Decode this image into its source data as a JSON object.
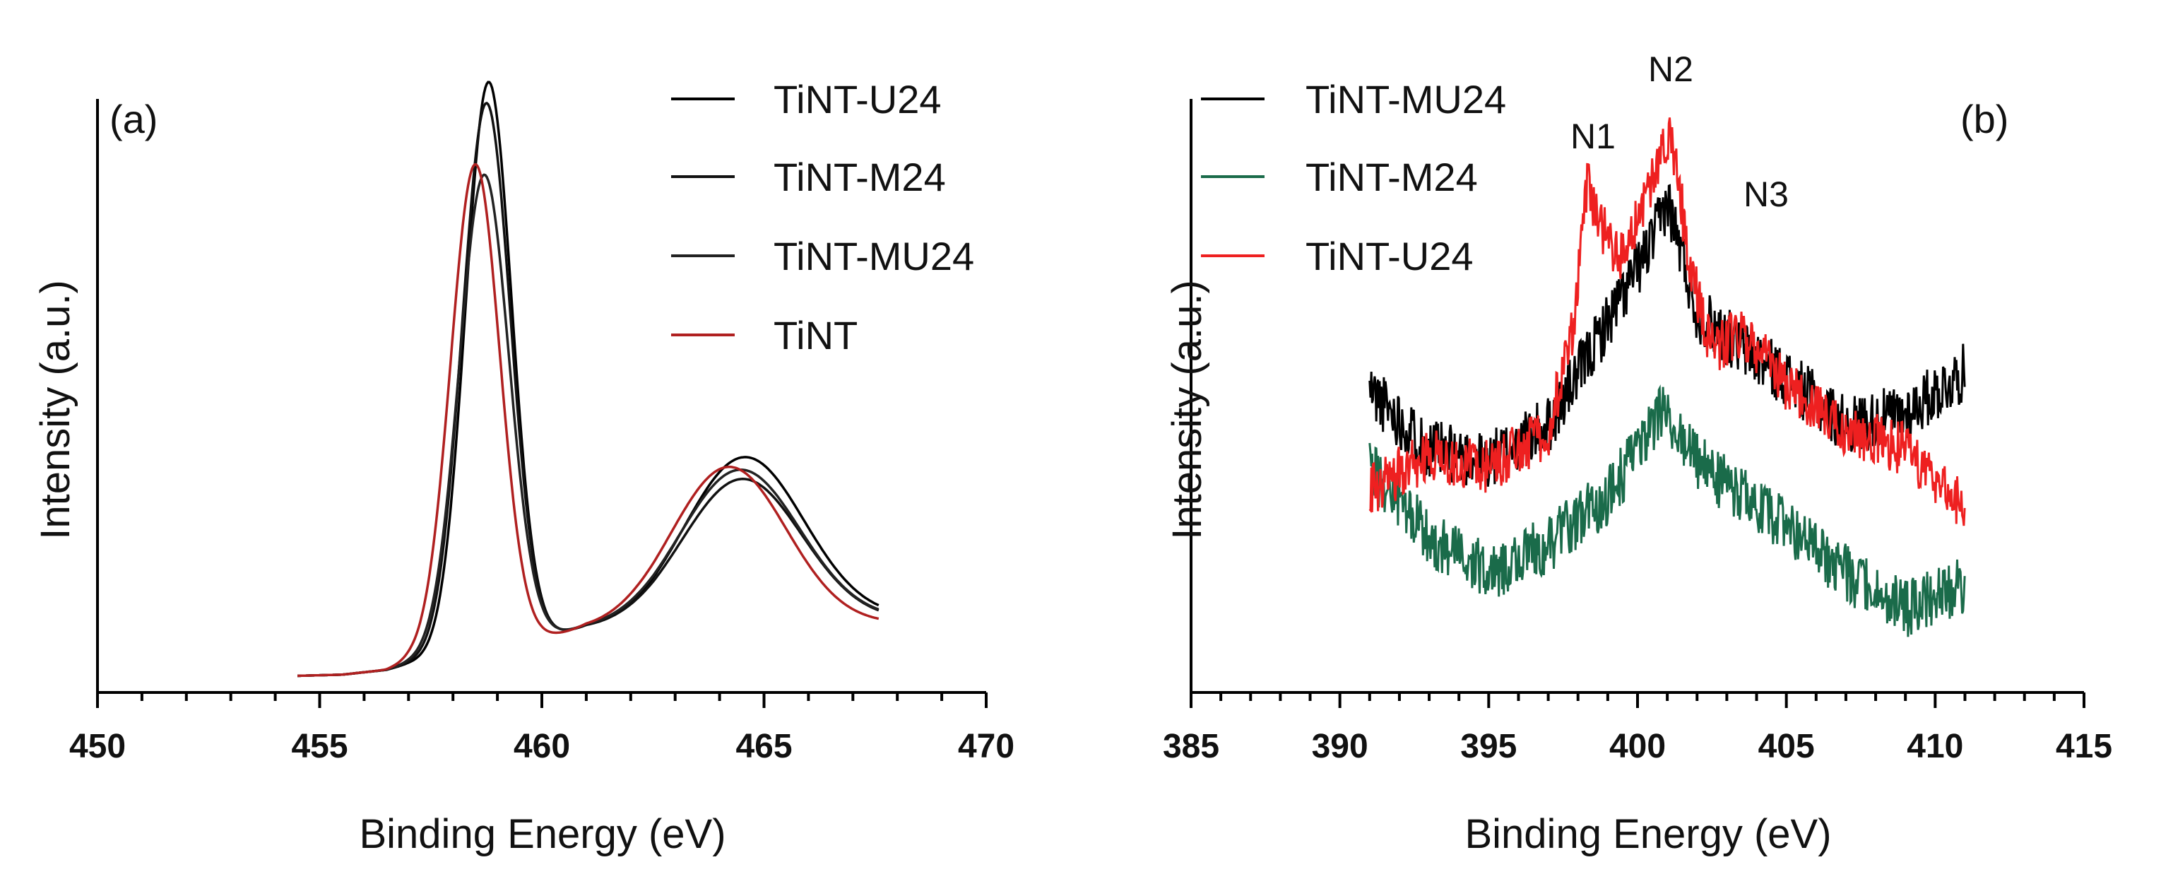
{
  "chart_data": [
    {
      "type": "line",
      "panel_label": "(a)",
      "xlabel": "Binding Energy (eV)",
      "ylabel": "Intensity (a.u.)",
      "xlim": [
        450,
        470
      ],
      "ylim": [
        0,
        100
      ],
      "xticks": [
        "450",
        "455",
        "460",
        "465",
        "470"
      ],
      "legend_position": "top-right",
      "series": [
        {
          "name": "TiNT-U24",
          "color": "#000000",
          "x0": 454.5,
          "x1": 467.6,
          "baseline": [
            [
              454.5,
              2.8
            ],
            [
              455.5,
              3.0
            ],
            [
              456.5,
              3.8
            ],
            [
              457.0,
              4.8
            ],
            [
              461.0,
              10.5
            ],
            [
              462.5,
              10.3
            ],
            [
              467.6,
              12.4
            ]
          ],
          "peaks": [
            {
              "c": 458.8,
              "h": 95.5,
              "w": 0.52
            },
            {
              "c": 464.55,
              "h": 28.5,
              "w": 1.35
            }
          ]
        },
        {
          "name": "TiNT-M24",
          "color": "#111111",
          "x0": 454.5,
          "x1": 467.6,
          "baseline": [
            [
              454.5,
              2.8
            ],
            [
              455.5,
              3.0
            ],
            [
              456.5,
              3.8
            ],
            [
              457.0,
              4.8
            ],
            [
              461.0,
              10.5
            ],
            [
              462.5,
              10.3
            ],
            [
              467.6,
              12.0
            ]
          ],
          "peaks": [
            {
              "c": 458.75,
              "h": 92.0,
              "w": 0.54
            },
            {
              "c": 464.5,
              "h": 25.0,
              "w": 1.35
            }
          ]
        },
        {
          "name": "TiNT-MU24",
          "color": "#222222",
          "x0": 454.5,
          "x1": 467.6,
          "baseline": [
            [
              454.5,
              2.8
            ],
            [
              455.5,
              3.0
            ],
            [
              456.5,
              3.8
            ],
            [
              457.0,
              4.8
            ],
            [
              461.0,
              10.5
            ],
            [
              462.5,
              10.3
            ],
            [
              467.6,
              12.2
            ]
          ],
          "peaks": [
            {
              "c": 458.7,
              "h": 80.0,
              "w": 0.56
            },
            {
              "c": 464.45,
              "h": 26.5,
              "w": 1.35
            }
          ]
        },
        {
          "name": "TiNT",
          "color": "#b02020",
          "x0": 454.5,
          "x1": 467.6,
          "baseline": [
            [
              454.5,
              2.8
            ],
            [
              455.5,
              3.0
            ],
            [
              456.5,
              3.8
            ],
            [
              457.0,
              5.0
            ],
            [
              461.0,
              10.3
            ],
            [
              462.5,
              10.0
            ],
            [
              467.6,
              11.5
            ]
          ],
          "peaks": [
            {
              "c": 458.5,
              "h": 82.0,
              "w": 0.55
            },
            {
              "c": 464.2,
              "h": 27.5,
              "w": 1.3
            }
          ]
        }
      ]
    },
    {
      "type": "line",
      "panel_label": "(b)",
      "xlabel": "Binding Energy (eV)",
      "ylabel": "Intensity (a.u.)",
      "xlim": [
        385,
        415
      ],
      "ylim": [
        0,
        100
      ],
      "xticks": [
        "385",
        "390",
        "395",
        "400",
        "405",
        "410",
        "415"
      ],
      "legend_position": "top-left",
      "annotations": [
        {
          "text": "N1",
          "x": 398.4
        },
        {
          "text": "N2",
          "x": 400.8
        },
        {
          "text": "N3",
          "x": 403.5
        }
      ],
      "series": [
        {
          "name": "TiNT-MU24",
          "color": "#000000",
          "x0": 391,
          "x1": 411,
          "noise": 5,
          "seed": 11,
          "baseline": [
            [
              391,
              51
            ],
            [
              393,
              41
            ],
            [
              395,
              39
            ],
            [
              397,
              45
            ],
            [
              398.5,
              58
            ],
            [
              400.5,
              76
            ],
            [
              401,
              83
            ],
            [
              402,
              64
            ],
            [
              403.5,
              58
            ],
            [
              405,
              53
            ],
            [
              407,
              45
            ],
            [
              409,
              47
            ],
            [
              411,
              54
            ]
          ]
        },
        {
          "name": "TiNT-M24",
          "color": "#1a6b4a",
          "x0": 391,
          "x1": 411,
          "noise": 5,
          "seed": 29,
          "baseline": [
            [
              391,
              38
            ],
            [
              393,
              26
            ],
            [
              395,
              20
            ],
            [
              397,
              25
            ],
            [
              399,
              33
            ],
            [
              400.8,
              47
            ],
            [
              402,
              39
            ],
            [
              403.5,
              33
            ],
            [
              405,
              28
            ],
            [
              407,
              20
            ],
            [
              409,
              14
            ],
            [
              411,
              18
            ]
          ]
        },
        {
          "name": "TiNT-U24",
          "color": "#ee2020",
          "x0": 391,
          "x1": 411,
          "noise": 4.5,
          "seed": 47,
          "baseline": [
            [
              391,
              34
            ],
            [
              393,
              40
            ],
            [
              395,
              38
            ],
            [
              397,
              44
            ],
            [
              397.8,
              60
            ],
            [
              398.3,
              86
            ],
            [
              398.7,
              79
            ],
            [
              399.5,
              73
            ],
            [
              400.5,
              86
            ],
            [
              401.1,
              95
            ],
            [
              401.8,
              71
            ],
            [
              402.5,
              58
            ],
            [
              403.5,
              61
            ],
            [
              405,
              52
            ],
            [
              407,
              44
            ],
            [
              409,
              41
            ],
            [
              411,
              31
            ]
          ]
        }
      ]
    }
  ]
}
